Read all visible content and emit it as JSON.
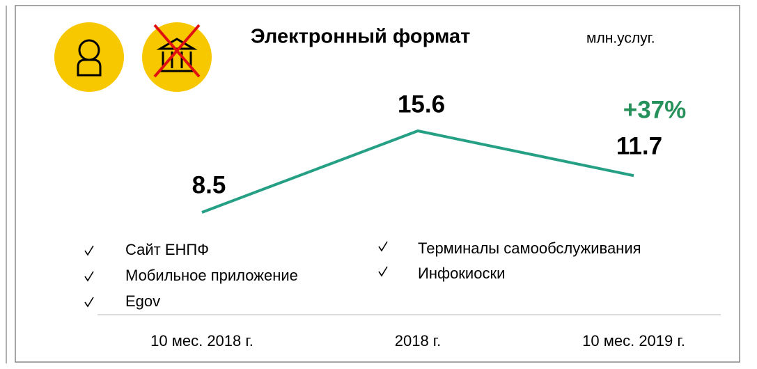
{
  "chart_data": {
    "type": "line",
    "title": "Электронный формат",
    "unit": "млн.услуг.",
    "categories": [
      "10 мес. 2018 г.",
      "2018 г.",
      "10 мес. 2019 г."
    ],
    "series": [
      {
        "color": "#26a085",
        "values": [
          8.5,
          15.6,
          11.7
        ]
      }
    ],
    "annotation": {
      "text": "+37%",
      "color": "#26915a"
    }
  },
  "channels": {
    "left": [
      "Сайт ЕНПФ",
      "Мобильное приложение",
      "Egov"
    ],
    "right": [
      "Терминалы самообслуживания",
      "Инфокиоски"
    ]
  }
}
